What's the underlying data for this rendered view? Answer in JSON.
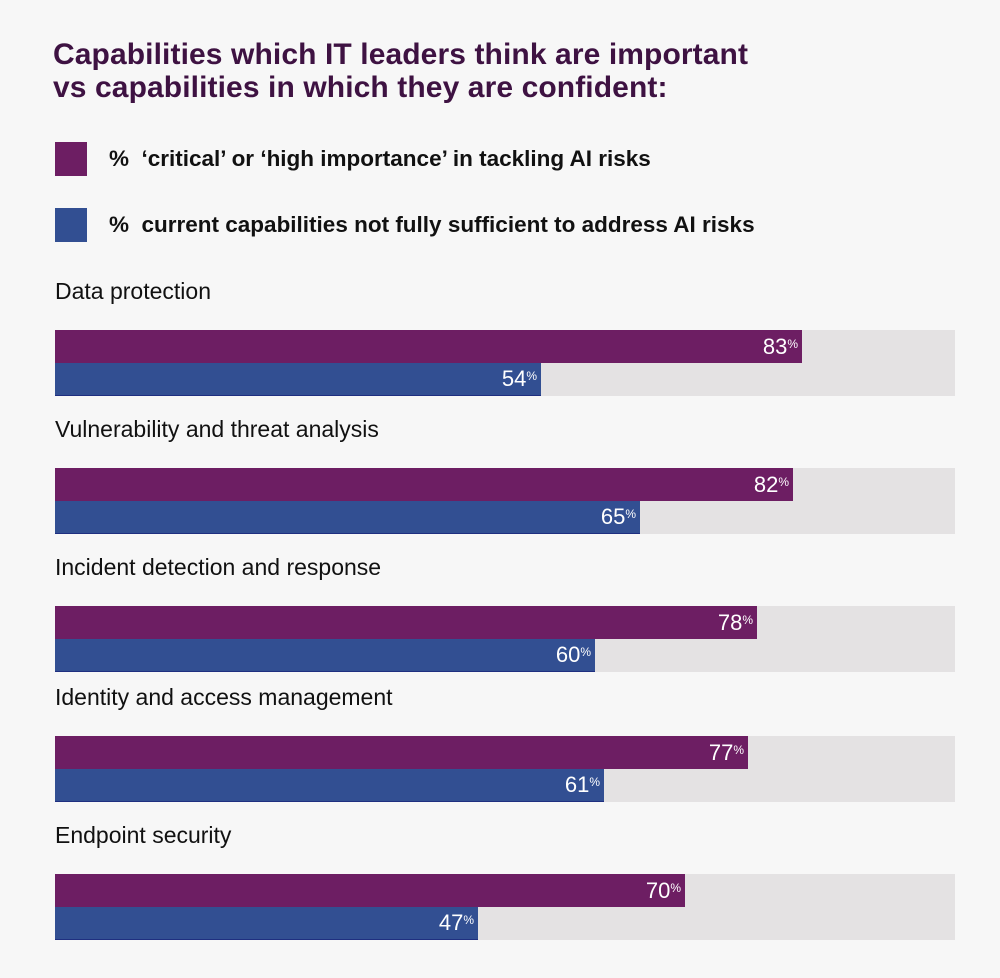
{
  "chart_data": {
    "type": "bar",
    "orientation": "horizontal",
    "title": "Capabilities which IT leaders think are important vs capabilities in which they are confident:",
    "categories": [
      "Data protection",
      "Vulnerability and threat analysis",
      "Incident detection and response",
      "Identity and access management",
      "Endpoint security"
    ],
    "series": [
      {
        "name": "%  ‘critical’ or ‘high importance’ in tackling AI risks",
        "color": "#6d1e63",
        "values": [
          83,
          82,
          78,
          77,
          70
        ]
      },
      {
        "name": "%  current capabilities not fully sufficient to address AI risks",
        "color": "#324f92",
        "values": [
          54,
          65,
          60,
          61,
          47
        ]
      }
    ],
    "xlim": [
      0,
      100
    ],
    "value_suffix": "%",
    "track_color": "#e4e2e3",
    "legend_position": "top",
    "grid": false,
    "xlabel": "",
    "ylabel": ""
  }
}
